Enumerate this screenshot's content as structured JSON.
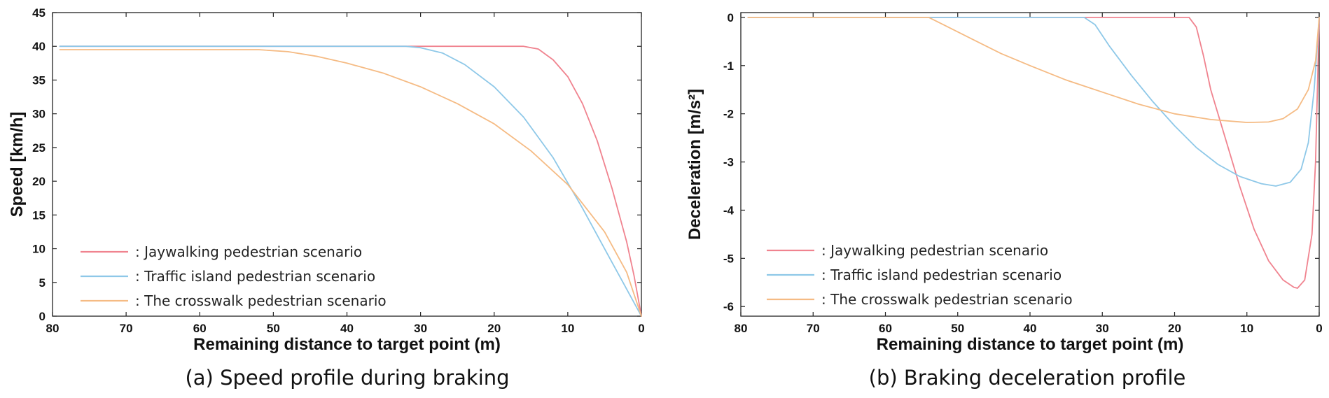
{
  "chart_data": [
    {
      "type": "line",
      "caption": "(a) Speed profile during braking",
      "xlabel": "Remaining distance to target point (m)",
      "ylabel": "Speed [km/h]",
      "xlim": [
        80,
        0
      ],
      "ylim": [
        0,
        45
      ],
      "xticks": [
        "80",
        "70",
        "60",
        "50",
        "40",
        "30",
        "20",
        "10",
        "0"
      ],
      "yticks": [
        "0",
        "5",
        "10",
        "15",
        "20",
        "25",
        "30",
        "35",
        "40",
        "45"
      ],
      "grid": false,
      "legend_position": "bottom-left",
      "series": [
        {
          "name": ": Jaywalking pedestrian scenario",
          "color": "#f0838f",
          "points": [
            [
              79,
              40
            ],
            [
              60,
              40
            ],
            [
              40,
              40
            ],
            [
              20,
              40
            ],
            [
              16,
              40
            ],
            [
              14,
              39.6
            ],
            [
              12,
              38
            ],
            [
              10,
              35.5
            ],
            [
              8,
              31.5
            ],
            [
              6,
              26
            ],
            [
              4,
              19
            ],
            [
              2,
              11
            ],
            [
              1,
              6
            ],
            [
              0,
              0
            ]
          ]
        },
        {
          "name": ": Traffic island pedestrian scenario",
          "color": "#8ec8e8",
          "points": [
            [
              79,
              40
            ],
            [
              60,
              40
            ],
            [
              40,
              40
            ],
            [
              32,
              40
            ],
            [
              30,
              39.8
            ],
            [
              27,
              39
            ],
            [
              24,
              37.3
            ],
            [
              20,
              34
            ],
            [
              16,
              29.5
            ],
            [
              12,
              23.5
            ],
            [
              8,
              16
            ],
            [
              4,
              8
            ],
            [
              2,
              4
            ],
            [
              0,
              0
            ]
          ]
        },
        {
          "name": ": The crosswalk pedestrian scenario",
          "color": "#f5bb84",
          "points": [
            [
              79,
              39.5
            ],
            [
              60,
              39.5
            ],
            [
              52,
              39.5
            ],
            [
              48,
              39.2
            ],
            [
              44,
              38.5
            ],
            [
              40,
              37.5
            ],
            [
              35,
              36
            ],
            [
              30,
              34
            ],
            [
              25,
              31.5
            ],
            [
              20,
              28.5
            ],
            [
              15,
              24.5
            ],
            [
              10,
              19.5
            ],
            [
              5,
              12.5
            ],
            [
              2,
              6.5
            ],
            [
              0,
              0
            ]
          ]
        }
      ]
    },
    {
      "type": "line",
      "caption": "(b) Braking deceleration profile",
      "xlabel": "Remaining distance to target point (m)",
      "ylabel": "Deceleration [m/s²]",
      "xlim": [
        80,
        0
      ],
      "ylim": [
        -6.2,
        0.1
      ],
      "xticks": [
        "80",
        "70",
        "60",
        "50",
        "40",
        "30",
        "20",
        "10",
        "0"
      ],
      "yticks": [
        "0",
        "-1",
        "-2",
        "-3",
        "-4",
        "-5",
        "-6"
      ],
      "grid": false,
      "legend_position": "bottom-left",
      "series": [
        {
          "name": ": Jaywalking pedestrian scenario",
          "color": "#f0838f",
          "points": [
            [
              79,
              0
            ],
            [
              60,
              0
            ],
            [
              40,
              0
            ],
            [
              20,
              0
            ],
            [
              18,
              0
            ],
            [
              17,
              -0.2
            ],
            [
              16,
              -0.8
            ],
            [
              15,
              -1.5
            ],
            [
              13,
              -2.5
            ],
            [
              11,
              -3.5
            ],
            [
              9,
              -4.4
            ],
            [
              7,
              -5.05
            ],
            [
              5,
              -5.45
            ],
            [
              3.5,
              -5.6
            ],
            [
              3,
              -5.62
            ],
            [
              2,
              -5.45
            ],
            [
              1,
              -4.5
            ],
            [
              0.5,
              -3.0
            ],
            [
              0,
              0
            ]
          ]
        },
        {
          "name": ": Traffic island pedestrian scenario",
          "color": "#8ec8e8",
          "points": [
            [
              79,
              0
            ],
            [
              60,
              0
            ],
            [
              40,
              0
            ],
            [
              32.5,
              0
            ],
            [
              31,
              -0.15
            ],
            [
              29,
              -0.6
            ],
            [
              26,
              -1.2
            ],
            [
              23,
              -1.75
            ],
            [
              20,
              -2.25
            ],
            [
              17,
              -2.7
            ],
            [
              14,
              -3.05
            ],
            [
              11,
              -3.3
            ],
            [
              8,
              -3.45
            ],
            [
              6,
              -3.5
            ],
            [
              4,
              -3.42
            ],
            [
              2.5,
              -3.15
            ],
            [
              1.5,
              -2.6
            ],
            [
              0.7,
              -1.5
            ],
            [
              0,
              0
            ]
          ]
        },
        {
          "name": ": The crosswalk pedestrian scenario",
          "color": "#f5bb84",
          "points": [
            [
              79,
              0
            ],
            [
              60,
              0
            ],
            [
              54,
              0
            ],
            [
              52,
              -0.15
            ],
            [
              48,
              -0.45
            ],
            [
              44,
              -0.75
            ],
            [
              40,
              -1.0
            ],
            [
              35,
              -1.3
            ],
            [
              30,
              -1.55
            ],
            [
              25,
              -1.8
            ],
            [
              20,
              -2.0
            ],
            [
              15,
              -2.12
            ],
            [
              10,
              -2.18
            ],
            [
              7,
              -2.17
            ],
            [
              5,
              -2.1
            ],
            [
              3,
              -1.9
            ],
            [
              1.5,
              -1.5
            ],
            [
              0.5,
              -0.9
            ],
            [
              0,
              0
            ]
          ]
        }
      ]
    }
  ]
}
